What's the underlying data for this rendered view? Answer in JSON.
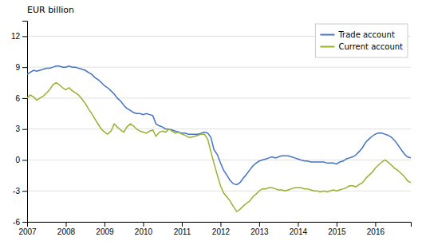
{
  "chart_data": {
    "type": "line",
    "title": "EUR billion",
    "x": [
      2007.0,
      2007.08,
      2007.17,
      2007.25,
      2007.33,
      2007.42,
      2007.5,
      2007.58,
      2007.67,
      2007.75,
      2007.83,
      2007.92,
      2008.0,
      2008.08,
      2008.17,
      2008.25,
      2008.33,
      2008.42,
      2008.5,
      2008.58,
      2008.67,
      2008.75,
      2008.83,
      2008.92,
      2009.0,
      2009.08,
      2009.17,
      2009.25,
      2009.33,
      2009.42,
      2009.5,
      2009.58,
      2009.67,
      2009.75,
      2009.83,
      2009.92,
      2010.0,
      2010.08,
      2010.17,
      2010.25,
      2010.33,
      2010.42,
      2010.5,
      2010.58,
      2010.67,
      2010.75,
      2010.83,
      2010.92,
      2011.0,
      2011.08,
      2011.17,
      2011.25,
      2011.33,
      2011.42,
      2011.5,
      2011.58,
      2011.67,
      2011.75,
      2011.83,
      2011.92,
      2012.0,
      2012.08,
      2012.17,
      2012.25,
      2012.33,
      2012.42,
      2012.5,
      2012.58,
      2012.67,
      2012.75,
      2012.83,
      2012.92,
      2013.0,
      2013.08,
      2013.17,
      2013.25,
      2013.33,
      2013.42,
      2013.5,
      2013.58,
      2013.67,
      2013.75,
      2013.83,
      2013.92,
      2014.0,
      2014.08,
      2014.17,
      2014.25,
      2014.33,
      2014.42,
      2014.5,
      2014.58,
      2014.67,
      2014.75,
      2014.83,
      2014.92,
      2015.0,
      2015.08,
      2015.17,
      2015.25,
      2015.33,
      2015.42,
      2015.5,
      2015.58,
      2015.67,
      2015.75,
      2015.83,
      2015.92,
      2016.0,
      2016.08,
      2016.17,
      2016.25,
      2016.33,
      2016.42,
      2016.5,
      2016.58,
      2016.67,
      2016.75,
      2016.83,
      2016.92
    ],
    "series": [
      {
        "name": "Trade account",
        "color": "#4472c4",
        "values": [
          8.3,
          8.5,
          8.7,
          8.6,
          8.7,
          8.8,
          8.9,
          8.9,
          9.0,
          9.1,
          9.1,
          9.0,
          9.0,
          9.1,
          9.0,
          9.0,
          8.9,
          8.8,
          8.7,
          8.5,
          8.3,
          8.0,
          7.8,
          7.5,
          7.2,
          7.0,
          6.7,
          6.4,
          6.0,
          5.7,
          5.3,
          5.0,
          4.8,
          4.6,
          4.5,
          4.5,
          4.4,
          4.5,
          4.4,
          4.3,
          3.5,
          3.3,
          3.2,
          3.0,
          3.0,
          2.9,
          2.8,
          2.7,
          2.6,
          2.6,
          2.5,
          2.5,
          2.5,
          2.5,
          2.6,
          2.7,
          2.6,
          2.2,
          1.0,
          0.5,
          -0.3,
          -1.0,
          -1.5,
          -2.0,
          -2.3,
          -2.4,
          -2.2,
          -1.8,
          -1.4,
          -1.0,
          -0.6,
          -0.3,
          -0.1,
          0.0,
          0.1,
          0.2,
          0.3,
          0.2,
          0.3,
          0.4,
          0.4,
          0.4,
          0.3,
          0.2,
          0.1,
          0.0,
          -0.1,
          -0.1,
          -0.2,
          -0.2,
          -0.2,
          -0.2,
          -0.2,
          -0.3,
          -0.3,
          -0.3,
          -0.4,
          -0.2,
          -0.1,
          0.1,
          0.2,
          0.3,
          0.5,
          0.8,
          1.2,
          1.7,
          2.0,
          2.3,
          2.5,
          2.6,
          2.6,
          2.5,
          2.4,
          2.2,
          1.9,
          1.5,
          1.0,
          0.6,
          0.3,
          0.2
        ]
      },
      {
        "name": "Current account",
        "color": "#9aaf2f",
        "values": [
          6.0,
          6.3,
          6.1,
          5.8,
          6.0,
          6.2,
          6.5,
          6.8,
          7.3,
          7.5,
          7.3,
          7.0,
          6.8,
          7.0,
          6.7,
          6.5,
          6.3,
          5.9,
          5.5,
          5.0,
          4.5,
          4.0,
          3.5,
          3.0,
          2.7,
          2.5,
          2.8,
          3.5,
          3.2,
          2.9,
          2.7,
          3.2,
          3.5,
          3.3,
          3.0,
          2.8,
          2.7,
          2.6,
          2.8,
          2.9,
          2.3,
          2.7,
          2.8,
          2.7,
          3.0,
          2.8,
          2.6,
          2.7,
          2.5,
          2.4,
          2.2,
          2.2,
          2.3,
          2.4,
          2.5,
          2.5,
          2.0,
          0.8,
          -0.3,
          -1.5,
          -2.5,
          -3.2,
          -3.6,
          -4.0,
          -4.5,
          -5.0,
          -4.8,
          -4.5,
          -4.2,
          -4.0,
          -3.6,
          -3.3,
          -3.0,
          -2.8,
          -2.8,
          -2.7,
          -2.7,
          -2.8,
          -2.9,
          -2.9,
          -3.0,
          -2.9,
          -2.8,
          -2.7,
          -2.7,
          -2.7,
          -2.8,
          -2.8,
          -2.9,
          -3.0,
          -3.0,
          -3.1,
          -3.0,
          -3.1,
          -3.0,
          -2.9,
          -3.0,
          -2.9,
          -2.8,
          -2.7,
          -2.5,
          -2.5,
          -2.6,
          -2.4,
          -2.2,
          -1.8,
          -1.5,
          -1.2,
          -0.8,
          -0.5,
          -0.2,
          0.0,
          -0.2,
          -0.5,
          -0.8,
          -1.0,
          -1.3,
          -1.6,
          -2.0,
          -2.2
        ]
      }
    ],
    "xlim": [
      2007.0,
      2016.92
    ],
    "xticks": [
      2007,
      2008,
      2009,
      2010,
      2011,
      2012,
      2013,
      2014,
      2015,
      2016
    ],
    "ylim": [
      -6,
      13.5
    ],
    "yticks": [
      -6,
      -3,
      0,
      3,
      6,
      9,
      12
    ],
    "grid": true,
    "legend": "upper right"
  }
}
